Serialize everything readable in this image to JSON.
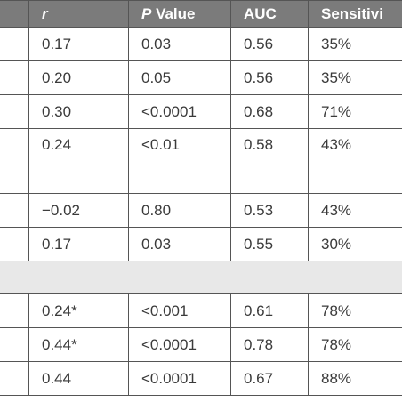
{
  "table": {
    "headers": {
      "r": "r",
      "p_italic": "P",
      "p_rest": " Value",
      "auc": "AUC",
      "sensitivity": "Sensitivi"
    },
    "rows": [
      {
        "r": "0.17",
        "p": "0.03",
        "auc": "0.56",
        "sens": "35%"
      },
      {
        "r": "0.20",
        "p": "0.05",
        "auc": "0.56",
        "sens": "35%"
      },
      {
        "r": "0.30",
        "p": "<0.0001",
        "auc": "0.68",
        "sens": "71%"
      },
      {
        "r": "0.24",
        "p": "<0.01",
        "auc": "0.58",
        "sens": "43%"
      },
      {
        "r": "−0.02",
        "p": "0.80",
        "auc": "0.53",
        "sens": "43%"
      },
      {
        "r": "0.17",
        "p": "0.03",
        "auc": "0.55",
        "sens": "30%"
      },
      {
        "r": "0.24*",
        "p": "<0.001",
        "auc": "0.61",
        "sens": "78%"
      },
      {
        "r": "0.44*",
        "p": "<0.0001",
        "auc": "0.78",
        "sens": "78%"
      },
      {
        "r": "0.44",
        "p": "<0.0001",
        "auc": "0.67",
        "sens": "88%"
      }
    ]
  },
  "colors": {
    "header_bg": "#7b7b7b",
    "section_bg": "#e8e8e8",
    "border": "#555555",
    "text": "#3a3a3a"
  }
}
